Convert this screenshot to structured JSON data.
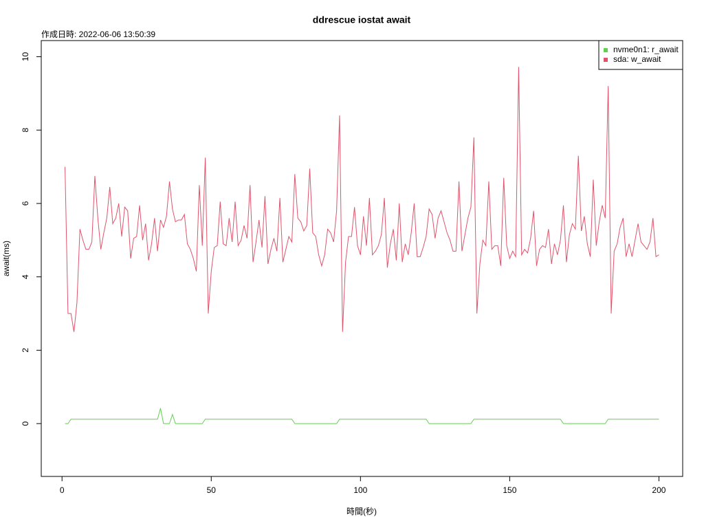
{
  "chart_data": {
    "type": "line",
    "title": "ddrescue iostat await",
    "subtitle": "作成日時: 2022-06-06 13:50:39",
    "x_label": "時間(秒)",
    "y_label": "await(ms)",
    "x": [
      1,
      2,
      3,
      4,
      5,
      6,
      7,
      8,
      9,
      10,
      11,
      12,
      13,
      14,
      15,
      16,
      17,
      18,
      19,
      20,
      21,
      22,
      23,
      24,
      25,
      26,
      27,
      28,
      29,
      30,
      31,
      32,
      33,
      34,
      35,
      36,
      37,
      38,
      39,
      40,
      41,
      42,
      43,
      44,
      45,
      46,
      47,
      48,
      49,
      50,
      51,
      52,
      53,
      54,
      55,
      56,
      57,
      58,
      59,
      60,
      61,
      62,
      63,
      64,
      65,
      66,
      67,
      68,
      69,
      70,
      71,
      72,
      73,
      74,
      75,
      76,
      77,
      78,
      79,
      80,
      81,
      82,
      83,
      84,
      85,
      86,
      87,
      88,
      89,
      90,
      91,
      92,
      93,
      94,
      95,
      96,
      97,
      98,
      99,
      100,
      101,
      102,
      103,
      104,
      105,
      106,
      107,
      108,
      109,
      110,
      111,
      112,
      113,
      114,
      115,
      116,
      117,
      118,
      119,
      120,
      121,
      122,
      123,
      124,
      125,
      126,
      127,
      128,
      129,
      130,
      131,
      132,
      133,
      134,
      135,
      136,
      137,
      138,
      139,
      140,
      141,
      142,
      143,
      144,
      145,
      146,
      147,
      148,
      149,
      150,
      151,
      152,
      153,
      154,
      155,
      156,
      157,
      158,
      159,
      160,
      161,
      162,
      163,
      164,
      165,
      166,
      167,
      168,
      169,
      170,
      171,
      172,
      173,
      174,
      175,
      176,
      177,
      178,
      179,
      180,
      181,
      182,
      183,
      184,
      185,
      186,
      187,
      188,
      189,
      190,
      191,
      192,
      193,
      194,
      195,
      196,
      197,
      198,
      199,
      200
    ],
    "series": [
      {
        "name": "nvme0n1: r_await",
        "color": "#61D04F",
        "values": [
          0,
          0,
          0.12,
          0.12,
          0.12,
          0.12,
          0.12,
          0.12,
          0.12,
          0.12,
          0.12,
          0.12,
          0.12,
          0.12,
          0.12,
          0.12,
          0.12,
          0.12,
          0.12,
          0.12,
          0.12,
          0.12,
          0.12,
          0.12,
          0.12,
          0.12,
          0.12,
          0.12,
          0.12,
          0.12,
          0.12,
          0.12,
          0.42,
          0,
          0,
          0,
          0.25,
          0,
          0,
          0,
          0,
          0,
          0,
          0,
          0,
          0,
          0,
          0.12,
          0.12,
          0.12,
          0.12,
          0.12,
          0.12,
          0.12,
          0.12,
          0.12,
          0.12,
          0.12,
          0.12,
          0.12,
          0.12,
          0.12,
          0.12,
          0.12,
          0.12,
          0.12,
          0.12,
          0.12,
          0.12,
          0.12,
          0.12,
          0.12,
          0.12,
          0.12,
          0.12,
          0.12,
          0.12,
          0,
          0,
          0,
          0,
          0,
          0,
          0,
          0,
          0,
          0,
          0,
          0,
          0,
          0,
          0,
          0.12,
          0.12,
          0.12,
          0.12,
          0.12,
          0.12,
          0.12,
          0.12,
          0.12,
          0.12,
          0.12,
          0.12,
          0.12,
          0.12,
          0.12,
          0.12,
          0.12,
          0.12,
          0.12,
          0.12,
          0.12,
          0.12,
          0.12,
          0.12,
          0.12,
          0.12,
          0.12,
          0.12,
          0.12,
          0.12,
          0,
          0,
          0,
          0,
          0,
          0,
          0,
          0,
          0,
          0,
          0,
          0,
          0,
          0,
          0,
          0.12,
          0.12,
          0.12,
          0.12,
          0.12,
          0.12,
          0.12,
          0.12,
          0.12,
          0.12,
          0.12,
          0.12,
          0.12,
          0.12,
          0.12,
          0.12,
          0.12,
          0.12,
          0.12,
          0.12,
          0.12,
          0.12,
          0.12,
          0.12,
          0.12,
          0.12,
          0.12,
          0.12,
          0.12,
          0.12,
          0,
          0,
          0,
          0,
          0,
          0,
          0,
          0,
          0,
          0,
          0,
          0,
          0,
          0,
          0,
          0.12,
          0.12,
          0.12,
          0.12,
          0.12,
          0.12,
          0.12,
          0.12,
          0.12,
          0.12,
          0.12,
          0.12,
          0.12,
          0.12,
          0.12,
          0.12,
          0.12,
          0.12
        ]
      },
      {
        "name": "sda: w_await",
        "color": "#DF536B",
        "values": [
          7.0,
          3.0,
          3.0,
          2.5,
          3.3,
          5.3,
          5.0,
          4.75,
          4.75,
          4.95,
          6.75,
          5.6,
          4.75,
          5.2,
          5.6,
          6.45,
          5.45,
          5.6,
          6.0,
          5.1,
          5.9,
          5.8,
          4.5,
          5.05,
          5.1,
          5.95,
          5.0,
          5.45,
          4.45,
          4.9,
          5.6,
          4.7,
          5.55,
          5.35,
          5.65,
          6.6,
          5.85,
          5.5,
          5.55,
          5.55,
          5.7,
          4.9,
          4.75,
          4.5,
          4.15,
          6.5,
          4.85,
          7.25,
          3.0,
          4.15,
          4.8,
          4.85,
          6.05,
          4.9,
          4.85,
          5.6,
          4.95,
          6.05,
          4.85,
          5.0,
          5.4,
          5.05,
          6.5,
          4.4,
          4.95,
          5.55,
          4.8,
          6.2,
          4.35,
          4.75,
          5.05,
          4.7,
          6.15,
          4.4,
          4.75,
          5.1,
          4.95,
          6.8,
          5.6,
          5.5,
          5.25,
          5.4,
          6.95,
          5.2,
          5.1,
          4.6,
          4.3,
          4.6,
          5.3,
          5.2,
          4.95,
          5.8,
          8.4,
          2.5,
          4.4,
          5.1,
          5.1,
          5.9,
          4.85,
          4.6,
          5.65,
          4.85,
          6.15,
          4.6,
          4.7,
          4.85,
          5.15,
          6.15,
          4.25,
          4.9,
          5.3,
          4.45,
          6.0,
          4.4,
          4.9,
          4.6,
          5.2,
          6.0,
          4.55,
          4.55,
          4.8,
          5.1,
          5.85,
          5.7,
          5.05,
          5.6,
          5.8,
          5.5,
          5.2,
          5.0,
          4.7,
          4.7,
          6.6,
          4.7,
          5.15,
          5.6,
          5.9,
          7.8,
          3.0,
          4.35,
          5.0,
          4.85,
          6.6,
          4.75,
          4.85,
          4.85,
          4.3,
          6.7,
          4.85,
          4.5,
          4.7,
          4.55,
          9.72,
          4.6,
          4.75,
          4.65,
          5.05,
          5.8,
          4.3,
          4.75,
          4.85,
          4.8,
          5.3,
          4.35,
          4.9,
          4.6,
          5.0,
          5.95,
          4.4,
          5.15,
          5.45,
          5.3,
          7.3,
          5.25,
          5.65,
          4.9,
          4.55,
          6.65,
          4.85,
          5.5,
          5.95,
          5.6,
          9.2,
          3.0,
          4.7,
          4.9,
          5.35,
          5.6,
          4.55,
          4.9,
          4.55,
          5.0,
          5.45,
          4.95,
          4.85,
          4.75,
          4.95,
          5.6,
          4.55,
          4.6
        ]
      }
    ],
    "xlim": [
      -6.96,
      207.96
    ],
    "xticks": [
      0,
      50,
      100,
      150,
      200
    ],
    "ylim": [
      -1.44,
      10.44
    ],
    "yticks": [
      0,
      2,
      4,
      6,
      8,
      10
    ],
    "legend": "topright"
  }
}
